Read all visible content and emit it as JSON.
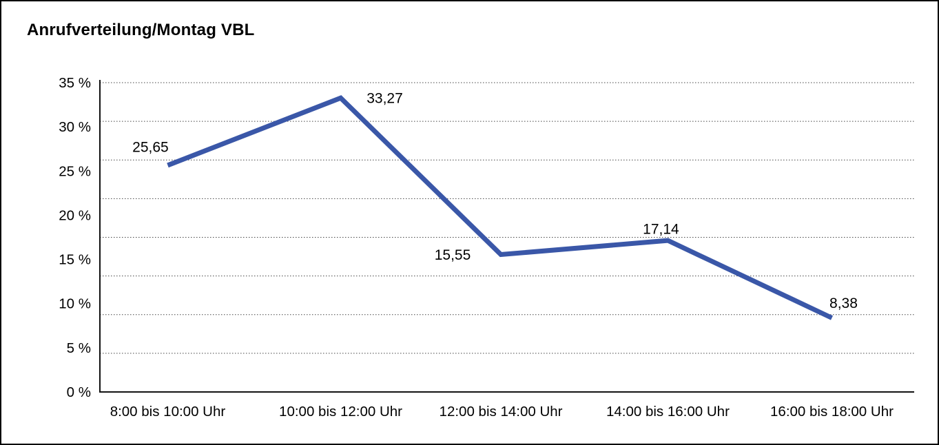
{
  "chart_data": {
    "type": "line",
    "title": "Anrufverteilung/Montag VBL",
    "categories": [
      "8:00 bis 10:00 Uhr",
      "10:00 bis 12:00 Uhr",
      "12:00 bis 14:00 Uhr",
      "14:00 bis 16:00 Uhr",
      "16:00 bis 18:00 Uhr"
    ],
    "values": [
      25.65,
      33.27,
      15.55,
      17.14,
      8.38
    ],
    "point_labels": [
      "25,65",
      "33,27",
      "15,55",
      "17,14",
      "8,38"
    ],
    "y_ticks": [
      {
        "value": 0,
        "label": "0 %"
      },
      {
        "value": 5,
        "label": "5 %"
      },
      {
        "value": 10,
        "label": "10 %"
      },
      {
        "value": 15,
        "label": "15 %"
      },
      {
        "value": 20,
        "label": "20 %"
      },
      {
        "value": 25,
        "label": "25 %"
      },
      {
        "value": 30,
        "label": "30 %"
      },
      {
        "value": 35,
        "label": "35 %"
      }
    ],
    "ylim": [
      0,
      35
    ],
    "xlabel": "",
    "ylabel": "",
    "legend": "none",
    "grid": {
      "horizontal_intervals": 8,
      "style": "dotted",
      "baseline": "solid"
    },
    "line_color": "#3A57A8",
    "axis_color": "#111111",
    "gridline_color": "#444444",
    "text_color": "#000000",
    "background": "#FFFFFF",
    "border_color": "#000000"
  }
}
